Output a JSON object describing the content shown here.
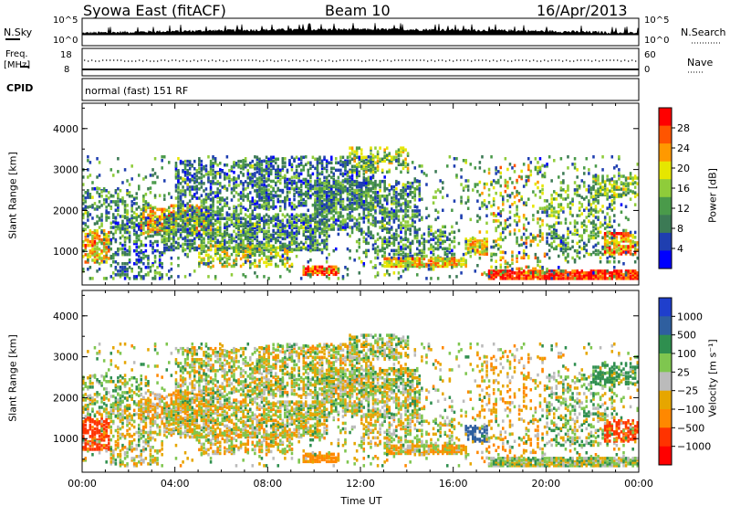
{
  "header": {
    "station": "Syowa East (fitACF)",
    "beam": "Beam 10",
    "date": "16/Apr/2013"
  },
  "top_panels": {
    "nsky_label": "N.Sky",
    "nsearch_label": "N.Search",
    "freq_label": "Freq.",
    "freq_unit": "[MHz]",
    "nave_label": "Nave",
    "cpid_label": "CPID",
    "cpid_text": "normal (fast) 151 RF",
    "noise_ticks": [
      "10^5",
      "10^0"
    ],
    "freq_ticks": [
      "18",
      "8"
    ],
    "nave_ticks": [
      "60",
      "0"
    ]
  },
  "colors": {
    "power_scale": [
      "#0000ff",
      "#1f3fb0",
      "#3c7a55",
      "#4a9a4a",
      "#8fcc3a",
      "#e6e600",
      "#ff9900",
      "#ff5500",
      "#ff0000"
    ],
    "velocity_scale": [
      "#1f3fcc",
      "#2f5f9f",
      "#2f8f4f",
      "#7fc64f",
      "#bbbbbb",
      "#e6a600",
      "#ff8800",
      "#ff3300",
      "#ff0000"
    ]
  },
  "chart_data": [
    {
      "type": "heatmap",
      "name": "power",
      "xlabel": "Time UT",
      "ylabel": "Slant Range [km]",
      "xlim": [
        0,
        24
      ],
      "ylim": [
        180,
        4620
      ],
      "x_ticks": [
        "00:00",
        "04:00",
        "08:00",
        "12:00",
        "16:00",
        "20:00",
        "00:00"
      ],
      "y_ticks": [
        1000,
        2000,
        3000,
        4000
      ],
      "colorbar_label": "Power [dB]",
      "colorbar_ticks": [
        "28",
        "24",
        "20",
        "16",
        "12",
        "8",
        "4"
      ],
      "colorbar_range": [
        0,
        30
      ]
    },
    {
      "type": "heatmap",
      "name": "velocity",
      "xlabel": "Time UT",
      "ylabel": "Slant Range [km]",
      "xlim": [
        0,
        24
      ],
      "ylim": [
        180,
        4620
      ],
      "x_ticks": [
        "00:00",
        "04:00",
        "08:00",
        "12:00",
        "16:00",
        "20:00",
        "00:00"
      ],
      "y_ticks": [
        1000,
        2000,
        3000,
        4000
      ],
      "colorbar_label": "Velocity [m s⁻¹]",
      "colorbar_ticks": [
        "1000",
        "500",
        "100",
        "25",
        "−25",
        "−100",
        "−500",
        "−1000"
      ],
      "colorbar_range": [
        -1200,
        1200
      ]
    }
  ]
}
